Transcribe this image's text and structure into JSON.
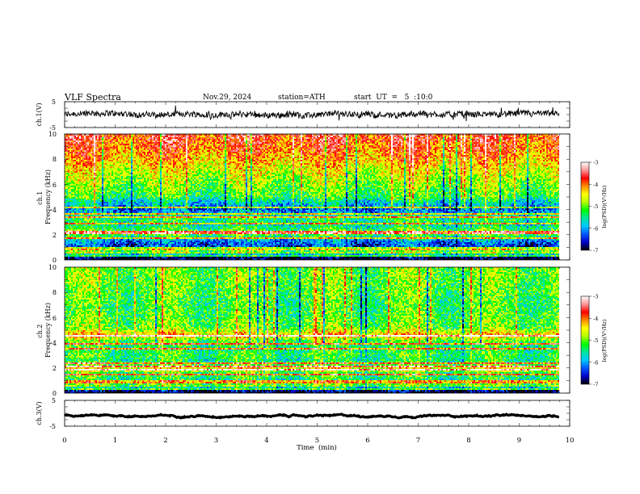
{
  "header": {
    "title": "VLF  Spectra",
    "date": "Nov.29, 2024",
    "station": "station=ATH",
    "start": "start  UT  =   5  :10:0"
  },
  "colors": {
    "background": "#ffffff",
    "trace": "#000000",
    "colormap": [
      "#000000",
      "#0000c8",
      "#0055ff",
      "#00c8ff",
      "#00e6a0",
      "#00ff00",
      "#b4ff00",
      "#ffff00",
      "#ff8c00",
      "#ff0000",
      "#ff9696",
      "#ffffff"
    ]
  },
  "chart_data": [
    {
      "type": "line",
      "name": "ch1-waveform",
      "ylabel": "ch.1(V)",
      "ylim": [
        -5,
        5
      ],
      "yticks": [
        "5",
        "-5"
      ],
      "xlim": [
        0,
        10
      ],
      "baseline": 0,
      "noise_amplitude": 1.2,
      "end_time": 9.8
    },
    {
      "type": "heatmap",
      "name": "ch1-spectrogram",
      "ylabel": "ch.1\nFrequency  (kHz)",
      "ylim": [
        0,
        10
      ],
      "yticks": [
        "0",
        "2",
        "4",
        "6",
        "8",
        "10"
      ],
      "xlim": [
        0,
        10
      ],
      "end_time": 9.8,
      "colorbar": {
        "label": "log(PSD)(V²/Hz)",
        "range": [
          -7,
          -3
        ],
        "ticks": [
          "-3",
          "-4",
          "-5",
          "-6",
          "-7"
        ]
      },
      "level_profile": [
        [
          0.0,
          -7.0
        ],
        [
          0.3,
          -6.8
        ],
        [
          0.6,
          -4.6
        ],
        [
          0.8,
          -5.6
        ],
        [
          1.0,
          -6.4
        ],
        [
          1.4,
          -6.2
        ],
        [
          1.8,
          -5.6
        ],
        [
          2.1,
          -4.8
        ],
        [
          2.4,
          -5.2
        ],
        [
          2.8,
          -5.6
        ],
        [
          3.2,
          -5.3
        ],
        [
          3.6,
          -5.8
        ],
        [
          4.0,
          -6.2
        ],
        [
          4.5,
          -5.8
        ],
        [
          5.0,
          -5.2
        ],
        [
          6.0,
          -4.9
        ],
        [
          7.0,
          -4.6
        ],
        [
          8.0,
          -4.2
        ],
        [
          9.0,
          -3.9
        ],
        [
          10.0,
          -3.7
        ]
      ],
      "tone_lines_kHz": [
        0.3,
        0.9,
        1.7,
        2.1,
        2.3,
        2.9,
        3.4,
        3.7,
        4.2
      ]
    },
    {
      "type": "heatmap",
      "name": "ch2-spectrogram",
      "ylabel": "ch.2\nFrequency  (kHz)",
      "ylim": [
        0,
        10
      ],
      "yticks": [
        "0",
        "2",
        "4",
        "6",
        "8",
        "10"
      ],
      "xlim": [
        0,
        10
      ],
      "end_time": 9.8,
      "colorbar": {
        "label": "log(PSD)(V²/Hz)",
        "range": [
          -7,
          -3
        ],
        "ticks": [
          "-3",
          "-4",
          "-5",
          "-6",
          "-7"
        ]
      },
      "level_profile": [
        [
          0.0,
          -7.0
        ],
        [
          0.3,
          -6.6
        ],
        [
          0.6,
          -4.8
        ],
        [
          0.9,
          -5.6
        ],
        [
          1.2,
          -5.3
        ],
        [
          1.6,
          -5.2
        ],
        [
          1.9,
          -4.3
        ],
        [
          2.2,
          -5.0
        ],
        [
          2.6,
          -5.4
        ],
        [
          3.0,
          -5.2
        ],
        [
          3.6,
          -5.4
        ],
        [
          4.2,
          -5.0
        ],
        [
          4.6,
          -4.2
        ],
        [
          5.2,
          -5.0
        ],
        [
          6.0,
          -5.1
        ],
        [
          7.0,
          -5.2
        ],
        [
          8.0,
          -5.1
        ],
        [
          9.0,
          -5.0
        ],
        [
          10.0,
          -5.0
        ]
      ],
      "tone_lines_kHz": [
        0.3,
        0.9,
        1.5,
        1.9,
        2.1,
        2.4,
        3.5,
        3.9,
        4.6
      ]
    },
    {
      "type": "line",
      "name": "ch3-waveform",
      "ylabel": "ch.3(V)",
      "ylim": [
        -5,
        5
      ],
      "yticks": [
        "5",
        "-5"
      ],
      "xlim": [
        0,
        10
      ],
      "baseline": -1.0,
      "noise_amplitude": 0.1,
      "end_time": 9.8
    }
  ],
  "xaxis": {
    "label": "Time  (min)",
    "ticks": [
      "0",
      "1",
      "2",
      "3",
      "4",
      "5",
      "6",
      "7",
      "8",
      "9",
      "10"
    ]
  }
}
